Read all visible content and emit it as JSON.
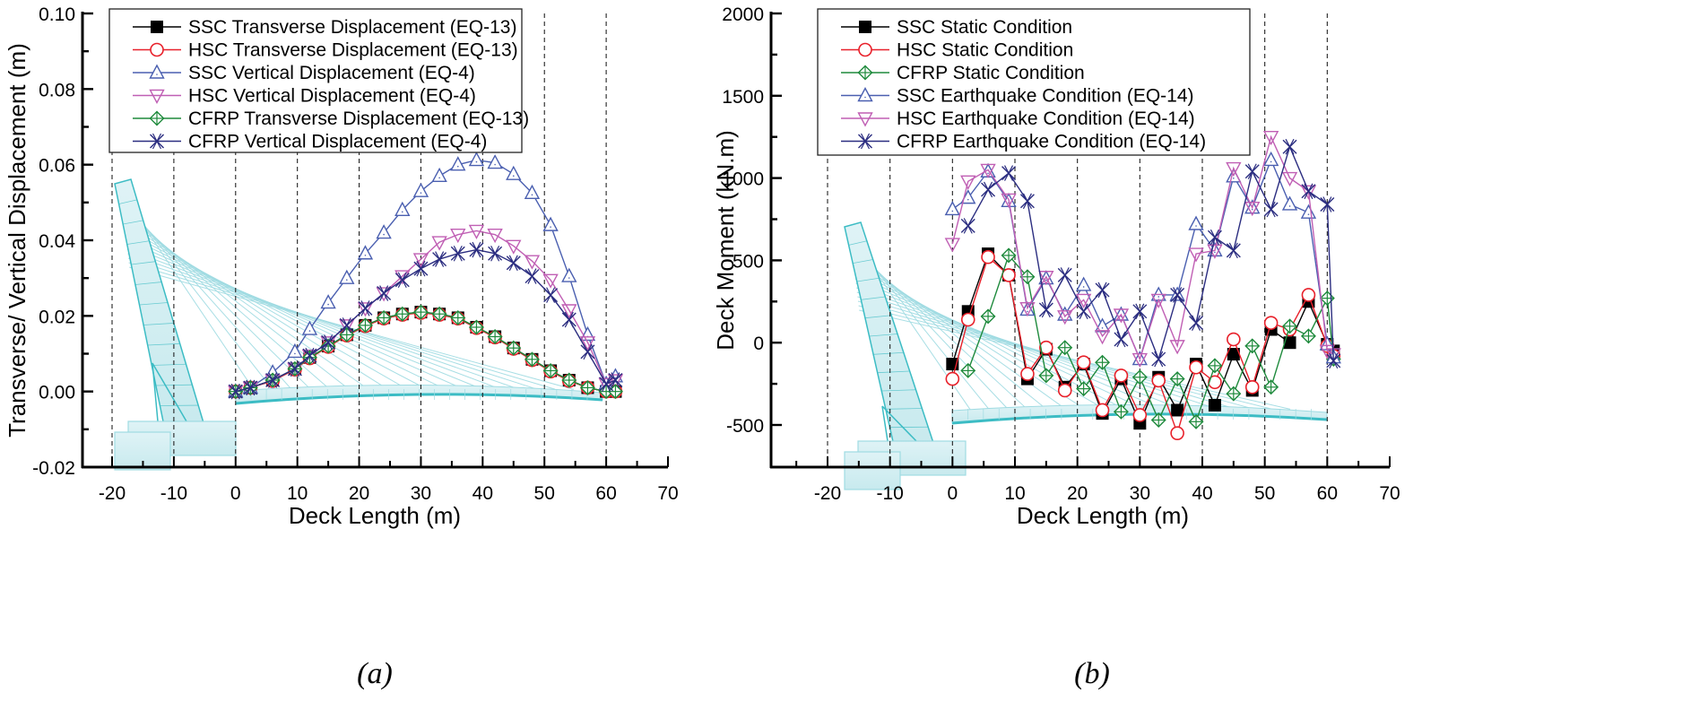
{
  "chart_data": [
    {
      "id": "a",
      "type": "line",
      "caption": "(a)",
      "title": "",
      "xlabel": "Deck Length (m)",
      "ylabel": "Transverse/ Vertical Displacement (m)",
      "xlim": [
        -25,
        70
      ],
      "ylim": [
        -0.02,
        0.1
      ],
      "xticks": [
        -20,
        -10,
        0,
        10,
        20,
        30,
        40,
        50,
        60,
        70
      ],
      "xtick_labels": [
        "-20",
        "-10",
        "0",
        "10",
        "20",
        "30",
        "40",
        "50",
        "60",
        "70"
      ],
      "yticks": [
        -0.02,
        0.0,
        0.02,
        0.04,
        0.06,
        0.08,
        0.1
      ],
      "ytick_labels": [
        "-0.02",
        "0.00",
        "0.02",
        "0.04",
        "0.06",
        "0.08",
        "0.10"
      ],
      "grid": "vertical-dashed",
      "legend_position": "top-left",
      "series": [
        {
          "name": "SSC Transverse Displacement (EQ-13)",
          "color": "#000000",
          "marker": "square-filled",
          "x": [
            0,
            2.4,
            6,
            9.6,
            12,
            15,
            18,
            21,
            24,
            27,
            30,
            33,
            36,
            39,
            42,
            45,
            48,
            51,
            54,
            57,
            60,
            61.5
          ],
          "y": [
            0,
            0.001,
            0.003,
            0.006,
            0.009,
            0.012,
            0.015,
            0.0175,
            0.0195,
            0.0205,
            0.021,
            0.0205,
            0.0195,
            0.017,
            0.0145,
            0.0115,
            0.0085,
            0.0055,
            0.003,
            0.001,
            0,
            0
          ]
        },
        {
          "name": "HSC Transverse Displacement (EQ-13)",
          "color": "#e8202a",
          "marker": "circle-open",
          "x": [
            0,
            2.4,
            6,
            9.6,
            12,
            15,
            18,
            21,
            24,
            27,
            30,
            33,
            36,
            39,
            42,
            45,
            48,
            51,
            54,
            57,
            60,
            61.5
          ],
          "y": [
            0,
            0.001,
            0.0028,
            0.0058,
            0.0088,
            0.0118,
            0.0148,
            0.0173,
            0.0193,
            0.0203,
            0.0208,
            0.0203,
            0.0193,
            0.0168,
            0.0143,
            0.0113,
            0.0083,
            0.0053,
            0.0028,
            0.001,
            0,
            0
          ]
        },
        {
          "name": "SSC Vertical Displacement (EQ-4)",
          "color": "#4a5fb0",
          "marker": "triangle-up-open",
          "x": [
            0,
            2.4,
            6,
            9.6,
            12,
            15,
            18,
            21,
            24,
            27,
            30,
            33,
            36,
            39,
            42,
            45,
            48,
            51,
            54,
            57,
            60,
            61.5
          ],
          "y": [
            0,
            0.001,
            0.005,
            0.0105,
            0.0165,
            0.0235,
            0.03,
            0.0365,
            0.042,
            0.048,
            0.053,
            0.057,
            0.06,
            0.0612,
            0.0605,
            0.0575,
            0.0525,
            0.044,
            0.0305,
            0.015,
            0.002,
            0.004
          ]
        },
        {
          "name": "HSC Vertical Displacement (EQ-4)",
          "color": "#c05fb4",
          "marker": "triangle-down-open",
          "x": [
            0,
            2.4,
            6,
            9.6,
            12,
            15,
            18,
            21,
            24,
            27,
            30,
            33,
            36,
            39,
            42,
            45,
            48,
            51,
            54,
            57,
            60,
            61.5
          ],
          "y": [
            0,
            0.001,
            0.003,
            0.006,
            0.0095,
            0.013,
            0.0175,
            0.022,
            0.026,
            0.0305,
            0.035,
            0.0395,
            0.0415,
            0.0425,
            0.0415,
            0.0385,
            0.0345,
            0.0295,
            0.0215,
            0.013,
            0.002,
            0.003
          ]
        },
        {
          "name": "CFRP Transverse Displacement (EQ-13)",
          "color": "#1e8a3c",
          "marker": "diamond-cross-open",
          "x": [
            0,
            2.4,
            6,
            9.6,
            12,
            15,
            18,
            21,
            24,
            27,
            30,
            33,
            36,
            39,
            42,
            45,
            48,
            51,
            54,
            57,
            60,
            61.5
          ],
          "y": [
            0,
            0.001,
            0.003,
            0.006,
            0.009,
            0.012,
            0.015,
            0.0175,
            0.0195,
            0.0205,
            0.021,
            0.0205,
            0.0195,
            0.017,
            0.0145,
            0.0115,
            0.0085,
            0.0055,
            0.003,
            0.001,
            0,
            0
          ]
        },
        {
          "name": "CFRP Vertical Displacement (EQ-4)",
          "color": "#2b2d80",
          "marker": "x-cross",
          "x": [
            0,
            2.4,
            6,
            9.6,
            12,
            15,
            18,
            21,
            24,
            27,
            30,
            33,
            36,
            39,
            42,
            45,
            48,
            51,
            54,
            57,
            60,
            61.5
          ],
          "y": [
            0,
            0.001,
            0.003,
            0.006,
            0.0095,
            0.013,
            0.0175,
            0.022,
            0.026,
            0.0295,
            0.0325,
            0.035,
            0.0365,
            0.0375,
            0.0365,
            0.034,
            0.0305,
            0.0255,
            0.019,
            0.0105,
            0.002,
            0.003
          ]
        }
      ]
    },
    {
      "id": "b",
      "type": "line",
      "caption": "(b)",
      "title": "",
      "xlabel": "Deck Length (m)",
      "ylabel": "Deck Moment (kN.m)",
      "xlim": [
        -25,
        70
      ],
      "ylim": [
        -750,
        2000
      ],
      "xticks": [
        -20,
        -10,
        0,
        10,
        20,
        30,
        40,
        50,
        60,
        70
      ],
      "xtick_labels": [
        "-20",
        "-10",
        "0",
        "10",
        "20",
        "30",
        "40",
        "50",
        "60",
        "70"
      ],
      "yticks": [
        -500,
        0,
        500,
        1000,
        1500,
        2000
      ],
      "ytick_labels": [
        "-500",
        "0",
        "500",
        "1000",
        "1500",
        "2000"
      ],
      "grid": "vertical-dashed",
      "legend_position": "top-left",
      "series": [
        {
          "name": "SSC Static Condition",
          "color": "#000000",
          "marker": "square-filled",
          "x": [
            0,
            2.5,
            5.7,
            9,
            12,
            15,
            18,
            21,
            24,
            27,
            30,
            33,
            36,
            39,
            42,
            45,
            48,
            51,
            54,
            57,
            60,
            61
          ],
          "y": [
            -130,
            190,
            540,
            410,
            -220,
            -40,
            -270,
            -130,
            -430,
            -220,
            -490,
            -210,
            -410,
            -130,
            -380,
            -70,
            -290,
            80,
            0,
            250,
            -10,
            -50
          ]
        },
        {
          "name": "HSC Static Condition",
          "color": "#e8202a",
          "marker": "circle-open",
          "x": [
            0,
            2.5,
            5.7,
            9,
            12,
            15,
            18,
            21,
            24,
            27,
            30,
            33,
            36,
            39,
            42,
            45,
            48,
            51,
            54,
            57,
            60,
            61
          ],
          "y": [
            -220,
            140,
            520,
            410,
            -190,
            -30,
            -290,
            -120,
            -410,
            -200,
            -440,
            -230,
            -550,
            -150,
            -240,
            20,
            -270,
            120,
            80,
            290,
            -20,
            -80
          ]
        },
        {
          "name": "CFRP Static Condition",
          "color": "#1e8a3c",
          "marker": "diamond-cross-open",
          "x": [
            0,
            2.5,
            5.7,
            9,
            12,
            15,
            18,
            21,
            24,
            27,
            30,
            33,
            36,
            39,
            42,
            45,
            48,
            51,
            54,
            57,
            60,
            61
          ],
          "y": [
            null,
            -170,
            160,
            530,
            400,
            -200,
            -30,
            -280,
            -120,
            -420,
            -210,
            -470,
            -220,
            -480,
            -140,
            -310,
            -20,
            -270,
            100,
            40,
            270,
            -100
          ]
        },
        {
          "name": "SSC Earthquake Condition (EQ-14)",
          "color": "#4a5fb0",
          "marker": "triangle-up-open",
          "x": [
            0,
            2.5,
            5.7,
            9,
            12,
            15,
            18,
            21,
            24,
            27,
            30,
            33,
            36,
            39,
            42,
            45,
            48,
            51,
            54,
            57,
            60,
            61
          ],
          "y": [
            810,
            880,
            1040,
            860,
            200,
            390,
            170,
            350,
            100,
            170,
            -100,
            290,
            290,
            720,
            560,
            1010,
            820,
            1110,
            840,
            790,
            -10,
            -90
          ]
        },
        {
          "name": "HSC Earthquake Condition (EQ-14)",
          "color": "#c05fb4",
          "marker": "triangle-down-open",
          "x": [
            0,
            2.5,
            5.7,
            9,
            12,
            15,
            18,
            21,
            24,
            27,
            30,
            33,
            36,
            39,
            42,
            45,
            48,
            51,
            54,
            57,
            60,
            61
          ],
          "y": [
            600,
            980,
            1050,
            870,
            210,
            400,
            160,
            260,
            40,
            170,
            -100,
            260,
            -20,
            540,
            560,
            1060,
            820,
            1250,
            1000,
            920,
            -50,
            -70
          ]
        },
        {
          "name": "CFRP Earthquake Condition (EQ-14)",
          "color": "#2b2d80",
          "marker": "x-cross",
          "x": [
            0,
            2.5,
            5.7,
            9,
            12,
            15,
            18,
            21,
            24,
            27,
            30,
            33,
            36,
            39,
            42,
            45,
            48,
            51,
            54,
            57,
            60,
            61
          ],
          "y": [
            null,
            710,
            930,
            1030,
            860,
            200,
            410,
            190,
            320,
            20,
            190,
            -100,
            290,
            120,
            640,
            560,
            1040,
            810,
            1190,
            920,
            840,
            -110
          ]
        }
      ]
    }
  ]
}
